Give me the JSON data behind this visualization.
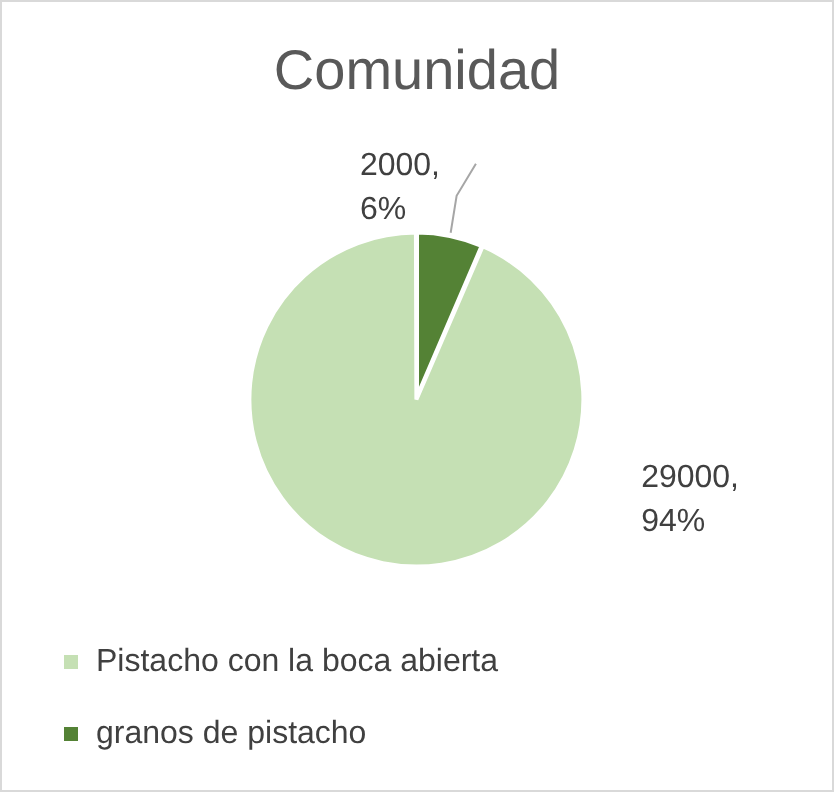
{
  "chart_data": {
    "type": "pie",
    "title": "Comunidad",
    "categories": [
      "Pistacho con la boca abierta",
      "granos de pistacho"
    ],
    "values": [
      29000,
      2000
    ],
    "colors": [
      "#c5e0b4",
      "#548235"
    ],
    "value_labels": [
      "29000, 94%",
      "2000, 6%"
    ],
    "legend": "bottom"
  }
}
